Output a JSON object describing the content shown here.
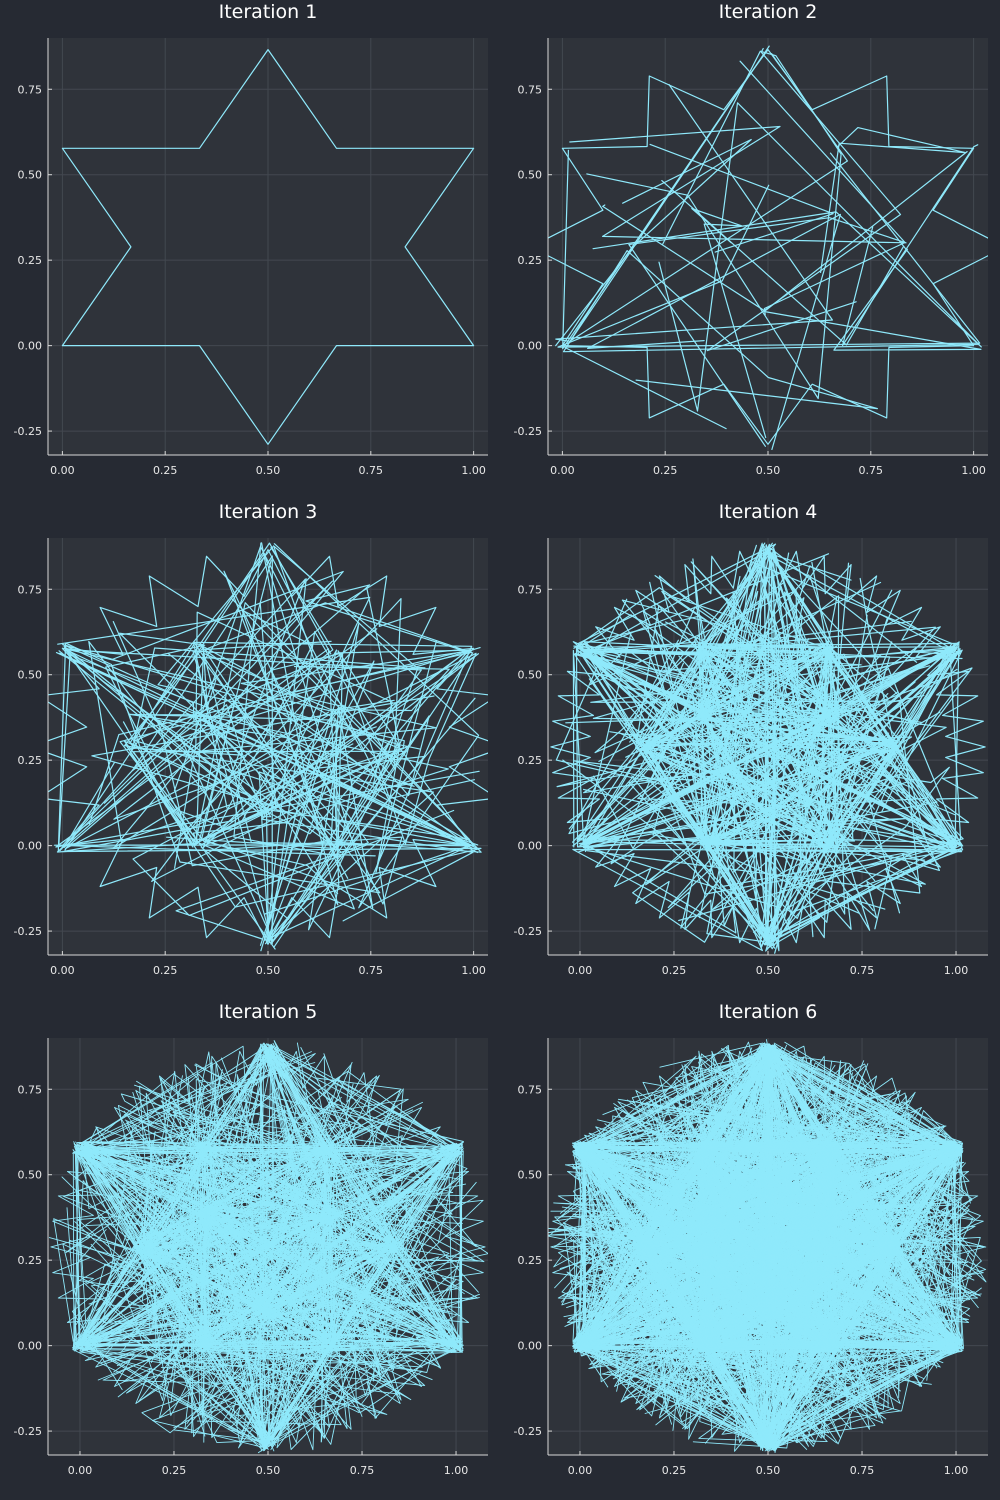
{
  "chart_data": [
    {
      "type": "line",
      "title": "Iteration 1",
      "iteration": 1,
      "xlim": [
        -0.035,
        1.035
      ],
      "ylim": [
        -0.32,
        0.9
      ],
      "xticks": [
        "0.00",
        "0.25",
        "0.50",
        "0.75",
        "1.00"
      ],
      "yticks": [
        "-0.25",
        "0.00",
        "0.25",
        "0.50",
        "0.75"
      ],
      "grid": true,
      "legend": "none",
      "series_color": "#8fe9fb",
      "series": [
        {
          "points": [
            [
              0,
              0
            ],
            [
              0.3333,
              0
            ],
            [
              0.5,
              -0.2887
            ],
            [
              0.6667,
              0
            ],
            [
              1,
              0
            ],
            [
              0.8333,
              0.2887
            ],
            [
              1,
              0.5774
            ],
            [
              0.6667,
              0.5774
            ],
            [
              0.5,
              0.866
            ],
            [
              0.3333,
              0.5774
            ],
            [
              0,
              0.5774
            ],
            [
              0.1667,
              0.2887
            ],
            [
              0,
              0
            ]
          ]
        }
      ]
    },
    {
      "type": "line",
      "title": "Iteration 2",
      "iteration": 2,
      "xlim": [
        -0.035,
        1.035
      ],
      "ylim": [
        -0.32,
        0.9
      ],
      "xticks": [
        "0.00",
        "0.25",
        "0.50",
        "0.75",
        "1.00"
      ],
      "yticks": [
        "-0.25",
        "0.00",
        "0.25",
        "0.50",
        "0.75"
      ],
      "grid": true,
      "legend": "none",
      "series_color": "#8fe9fb"
    },
    {
      "type": "line",
      "title": "Iteration 3",
      "iteration": 3,
      "xlim": [
        -0.035,
        1.035
      ],
      "ylim": [
        -0.32,
        0.9
      ],
      "xticks": [
        "0.00",
        "0.25",
        "0.50",
        "0.75",
        "1.00"
      ],
      "yticks": [
        "-0.25",
        "0.00",
        "0.25",
        "0.50",
        "0.75"
      ],
      "grid": true,
      "legend": "none",
      "series_color": "#8fe9fb"
    },
    {
      "type": "line",
      "title": "Iteration 4",
      "iteration": 4,
      "xlim": [
        -0.085,
        1.085
      ],
      "ylim": [
        -0.32,
        0.9
      ],
      "xticks": [
        "0.00",
        "0.25",
        "0.50",
        "0.75",
        "1.00"
      ],
      "yticks": [
        "-0.25",
        "0.00",
        "0.25",
        "0.50",
        "0.75"
      ],
      "grid": true,
      "legend": "none",
      "series_color": "#8fe9fb"
    },
    {
      "type": "line",
      "title": "Iteration 5",
      "iteration": 5,
      "xlim": [
        -0.085,
        1.085
      ],
      "ylim": [
        -0.32,
        0.9
      ],
      "xticks": [
        "0.00",
        "0.25",
        "0.50",
        "0.75",
        "1.00"
      ],
      "yticks": [
        "-0.25",
        "0.00",
        "0.25",
        "0.50",
        "0.75"
      ],
      "grid": true,
      "legend": "none",
      "series_color": "#8fe9fb"
    },
    {
      "type": "line",
      "title": "Iteration 6",
      "iteration": 6,
      "xlim": [
        -0.085,
        1.085
      ],
      "ylim": [
        -0.32,
        0.9
      ],
      "xticks": [
        "0.00",
        "0.25",
        "0.50",
        "0.75",
        "1.00"
      ],
      "yticks": [
        "-0.25",
        "0.00",
        "0.25",
        "0.50",
        "0.75"
      ],
      "grid": true,
      "legend": "none",
      "series_color": "#8fe9fb"
    }
  ],
  "colors": {
    "figure_background": "#262a33",
    "plot_background": "#2f333a",
    "series": "#8fe9fb",
    "grid": "#434850",
    "axis": "#d8d8d8",
    "text": "#ffffff"
  }
}
